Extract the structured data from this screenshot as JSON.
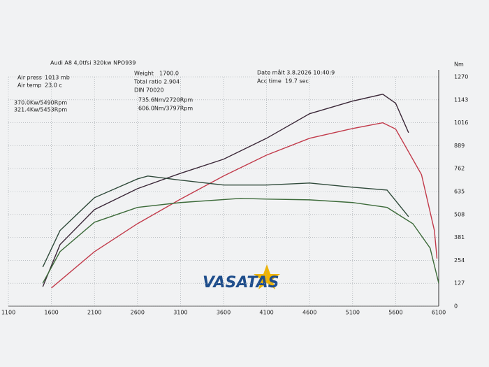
{
  "chart_data": {
    "type": "line",
    "header": {
      "vehicle": "Audi A8 4,0tfsi 320kw NPO939",
      "air_press_label": "Air press",
      "air_press": "1013 mb",
      "air_temp_label": "Air temp",
      "air_temp": "23.0 c",
      "weight_label": "Weight",
      "weight": "1700.0",
      "total_ratio": "Total ratio 2.904",
      "standard": "DIN 70020",
      "date": "Date målt 3.8.2026 10:40:9",
      "acc_label": "Acc time",
      "acc_time": "19.7 sec"
    },
    "logo": "VASATAS",
    "y_label": "Nm",
    "xlim": [
      1100,
      6100
    ],
    "xticks": [
      1100,
      1600,
      2100,
      2600,
      3100,
      3600,
      4100,
      4600,
      5100,
      5600,
      6100
    ],
    "ylim": [
      0,
      1270
    ],
    "yticks": [
      0,
      127,
      254,
      381,
      508,
      635,
      762,
      889,
      1016,
      1143,
      1270
    ],
    "grid": true,
    "series": [
      {
        "name": "370.0Kw/5490Rpm",
        "color": "#3b2838",
        "x": [
          1500,
          1700,
          2100,
          2600,
          3100,
          3600,
          4100,
          4600,
          5100,
          5450,
          5600,
          5750
        ],
        "values": [
          108,
          341,
          535,
          651,
          736,
          814,
          930,
          1066,
          1136,
          1174,
          1124,
          961
        ]
      },
      {
        "name": "321.4Kw/5453Rpm",
        "color": "#c23b4b",
        "x": [
          1600,
          2100,
          2600,
          3100,
          3600,
          4100,
          4600,
          5100,
          5450,
          5600,
          5900,
          6050,
          6080
        ],
        "values": [
          101,
          302,
          457,
          593,
          721,
          837,
          930,
          984,
          1016,
          981,
          729,
          419,
          264
        ]
      },
      {
        "name": "735.6Nm/2720Rpm",
        "color": "#2f4a3a",
        "x": [
          1500,
          1700,
          2100,
          2600,
          2720,
          3100,
          3600,
          4100,
          4600,
          5100,
          5500,
          5750
        ],
        "values": [
          217,
          419,
          601,
          705,
          721,
          698,
          671,
          671,
          682,
          659,
          643,
          496
        ]
      },
      {
        "name": "606.0Nm/3797Rpm",
        "color": "#3d6b3a",
        "x": [
          1500,
          1700,
          2100,
          2600,
          3100,
          3797,
          4100,
          4600,
          5100,
          5500,
          5800,
          6000,
          6100
        ],
        "values": [
          128,
          302,
          465,
          547,
          574,
          597,
          593,
          589,
          574,
          547,
          457,
          322,
          128
        ]
      }
    ]
  }
}
